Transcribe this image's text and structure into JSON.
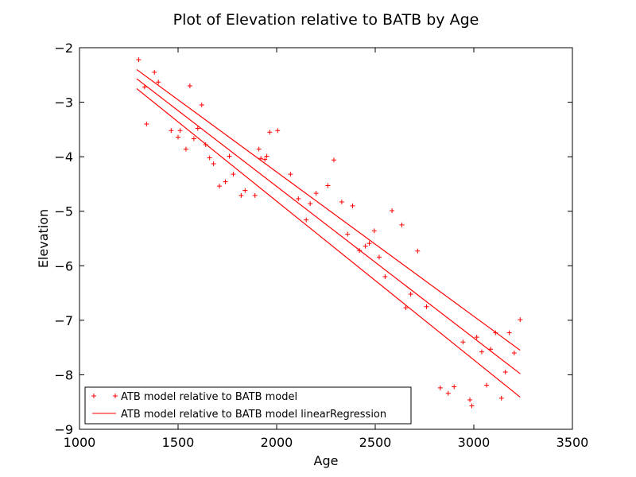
{
  "chart_data": {
    "type": "scatter",
    "title": "Plot of Elevation relative to BATB by Age",
    "xlabel": "Age",
    "ylabel": "Elevation",
    "xlim": [
      1000,
      3500
    ],
    "ylim": [
      -9,
      -2
    ],
    "xticks": [
      1000,
      1500,
      2000,
      2500,
      3000,
      3500
    ],
    "yticks": [
      -2,
      -3,
      -4,
      -5,
      -6,
      -7,
      -8,
      -9
    ],
    "xtick_labels": [
      "1000",
      "1500",
      "2000",
      "2500",
      "3000",
      "3500"
    ],
    "ytick_labels": [
      "−2",
      "−3",
      "−4",
      "−5",
      "−6",
      "−7",
      "−8",
      "−9"
    ],
    "grid": false,
    "legend": {
      "placement": "lower-left",
      "entries": [
        {
          "label": "ATB model relative to BATB model",
          "marker": "+"
        },
        {
          "label": "ATB model relative to BATB model linearRegression",
          "marker": "line"
        }
      ]
    },
    "color": "#ff0000",
    "series": [
      {
        "name": "ATB model relative to BATB model",
        "type": "scatter",
        "points": [
          [
            1300,
            -2.22
          ],
          [
            1330,
            -2.72
          ],
          [
            1340,
            -3.4
          ],
          [
            1380,
            -2.45
          ],
          [
            1400,
            -2.63
          ],
          [
            1465,
            -3.52
          ],
          [
            1500,
            -3.64
          ],
          [
            1510,
            -3.52
          ],
          [
            1540,
            -3.86
          ],
          [
            1560,
            -2.7
          ],
          [
            1580,
            -3.67
          ],
          [
            1600,
            -3.48
          ],
          [
            1620,
            -3.05
          ],
          [
            1640,
            -3.78
          ],
          [
            1660,
            -4.02
          ],
          [
            1680,
            -4.13
          ],
          [
            1710,
            -4.54
          ],
          [
            1740,
            -4.46
          ],
          [
            1760,
            -3.99
          ],
          [
            1780,
            -4.32
          ],
          [
            1820,
            -4.71
          ],
          [
            1840,
            -4.62
          ],
          [
            1890,
            -4.71
          ],
          [
            1910,
            -3.86
          ],
          [
            1920,
            -4.03
          ],
          [
            1940,
            -4.05
          ],
          [
            1950,
            -3.99
          ],
          [
            1965,
            -3.55
          ],
          [
            2005,
            -3.52
          ],
          [
            2070,
            -4.32
          ],
          [
            2110,
            -4.77
          ],
          [
            2150,
            -5.16
          ],
          [
            2170,
            -4.86
          ],
          [
            2200,
            -4.67
          ],
          [
            2260,
            -4.53
          ],
          [
            2290,
            -4.06
          ],
          [
            2330,
            -4.83
          ],
          [
            2360,
            -5.42
          ],
          [
            2385,
            -4.9
          ],
          [
            2420,
            -5.72
          ],
          [
            2450,
            -5.64
          ],
          [
            2470,
            -5.59
          ],
          [
            2495,
            -5.36
          ],
          [
            2520,
            -5.84
          ],
          [
            2550,
            -6.2
          ],
          [
            2585,
            -4.99
          ],
          [
            2635,
            -5.25
          ],
          [
            2655,
            -6.77
          ],
          [
            2680,
            -6.52
          ],
          [
            2715,
            -5.73
          ],
          [
            2760,
            -6.75
          ],
          [
            2830,
            -8.24
          ],
          [
            2870,
            -8.34
          ],
          [
            2900,
            -8.22
          ],
          [
            2945,
            -7.4
          ],
          [
            2980,
            -8.46
          ],
          [
            2990,
            -8.57
          ],
          [
            3015,
            -7.31
          ],
          [
            3040,
            -7.58
          ],
          [
            3065,
            -8.19
          ],
          [
            3085,
            -7.53
          ],
          [
            3110,
            -7.23
          ],
          [
            3140,
            -8.43
          ],
          [
            3160,
            -7.95
          ],
          [
            3180,
            -7.23
          ],
          [
            3205,
            -7.6
          ],
          [
            3235,
            -6.99
          ]
        ]
      },
      {
        "name": "ATB model relative to BATB model linearRegression",
        "type": "line",
        "lines": [
          [
            [
              1290,
              -2.4
            ],
            [
              3235,
              -7.55
            ]
          ],
          [
            [
              1290,
              -2.57
            ],
            [
              3235,
              -7.98
            ]
          ],
          [
            [
              1290,
              -2.75
            ],
            [
              3235,
              -8.41
            ]
          ]
        ]
      }
    ]
  }
}
